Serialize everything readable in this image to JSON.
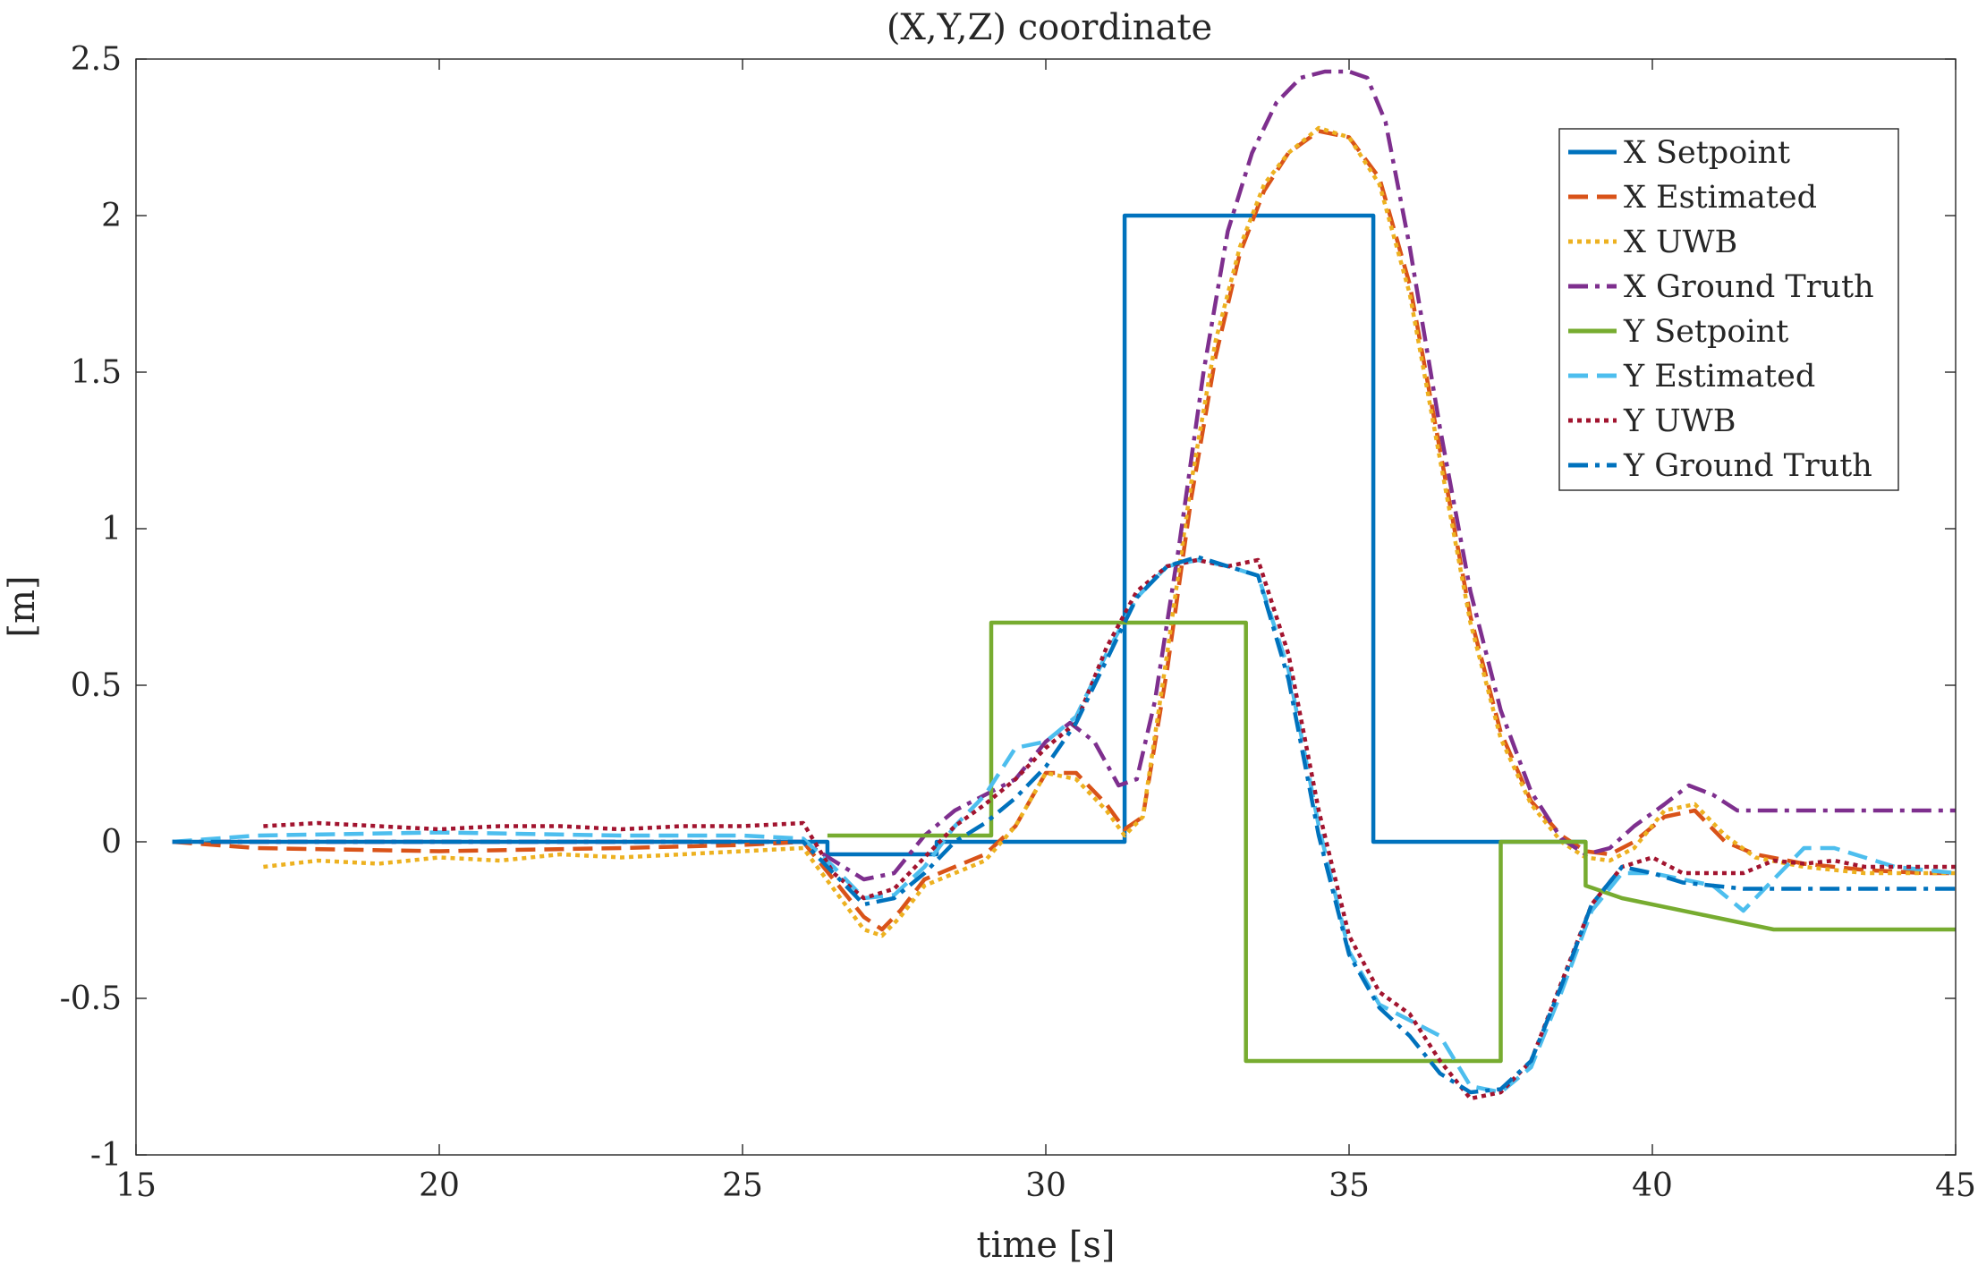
{
  "chart_data": {
    "type": "line",
    "title": "(X,Y,Z) coordinate",
    "xlabel": "time [s]",
    "ylabel": "[m]",
    "xlim": [
      15,
      45
    ],
    "ylim": [
      -1,
      2.5
    ],
    "xticks": [
      15,
      20,
      25,
      30,
      35,
      40,
      45
    ],
    "xtick_labels": [
      "15",
      "20",
      "25",
      "30",
      "35",
      "40",
      "45"
    ],
    "yticks": [
      -1,
      -0.5,
      0,
      0.5,
      1,
      1.5,
      2,
      2.5
    ],
    "ytick_labels": [
      "-1",
      "-0.5",
      "0",
      "0.5",
      "1",
      "1.5",
      "2",
      "2.5"
    ],
    "grid": false,
    "legend_position": "top-right",
    "series": [
      {
        "name": "X Setpoint",
        "color": "#0072BD",
        "style": "solid",
        "x": [
          15.6,
          26.4,
          26.4,
          28.2,
          28.2,
          31.3,
          31.3,
          35.4,
          35.4,
          38.9
        ],
        "y": [
          0,
          0,
          -0.04,
          -0.04,
          0,
          0,
          2.0,
          2.0,
          0,
          0
        ]
      },
      {
        "name": "X Estimated",
        "color": "#D95319",
        "style": "dashed",
        "x": [
          15.6,
          17,
          20,
          23,
          25,
          26,
          26.5,
          27,
          27.3,
          27.6,
          28,
          28.5,
          29,
          29.5,
          30,
          30.5,
          31,
          31.3,
          31.6,
          32,
          32.4,
          32.8,
          33.2,
          33.6,
          34,
          34.5,
          35,
          35.5,
          36,
          36.5,
          37,
          37.5,
          38,
          38.5,
          38.9,
          39.3,
          39.7,
          40.2,
          40.7,
          41.2,
          41.7,
          42.5,
          43.5,
          44.5,
          45
        ],
        "y": [
          0,
          -0.02,
          -0.03,
          -0.02,
          -0.01,
          0.0,
          -0.12,
          -0.24,
          -0.28,
          -0.22,
          -0.12,
          -0.08,
          -0.04,
          0.05,
          0.22,
          0.22,
          0.12,
          0.04,
          0.08,
          0.55,
          1.1,
          1.55,
          1.88,
          2.08,
          2.2,
          2.27,
          2.25,
          2.12,
          1.78,
          1.25,
          0.72,
          0.35,
          0.13,
          0.02,
          -0.03,
          -0.04,
          0.0,
          0.08,
          0.1,
          0.0,
          -0.04,
          -0.07,
          -0.09,
          -0.1,
          -0.1
        ]
      },
      {
        "name": "X UWB",
        "color": "#EDB120",
        "style": "dotted",
        "x": [
          17.1,
          18,
          19,
          20,
          21,
          22,
          23,
          24,
          25,
          26,
          26.5,
          27,
          27.3,
          27.6,
          28,
          28.5,
          29,
          29.5,
          30,
          30.5,
          31,
          31.3,
          31.6,
          32,
          32.4,
          32.8,
          33.2,
          33.6,
          34,
          34.5,
          35,
          35.5,
          36,
          36.5,
          37,
          37.5,
          38,
          38.5,
          38.9,
          39.3,
          39.7,
          40.2,
          40.7,
          41.2,
          41.7,
          42.5,
          43.5,
          44.5,
          45
        ],
        "y": [
          -0.08,
          -0.06,
          -0.07,
          -0.05,
          -0.06,
          -0.04,
          -0.05,
          -0.04,
          -0.03,
          -0.02,
          -0.15,
          -0.28,
          -0.3,
          -0.24,
          -0.14,
          -0.1,
          -0.06,
          0.05,
          0.22,
          0.2,
          0.1,
          0.02,
          0.08,
          0.6,
          1.15,
          1.6,
          1.9,
          2.1,
          2.2,
          2.28,
          2.25,
          2.1,
          1.75,
          1.22,
          0.7,
          0.33,
          0.12,
          0.0,
          -0.05,
          -0.06,
          -0.02,
          0.1,
          0.12,
          0.02,
          -0.05,
          -0.08,
          -0.1,
          -0.1,
          -0.1
        ]
      },
      {
        "name": "X Ground Truth",
        "color": "#7E2F8E",
        "style": "dashdot",
        "x": [
          15.6,
          17,
          20,
          23,
          25,
          26,
          26.5,
          27,
          27.5,
          28,
          28.5,
          29,
          29.5,
          30,
          30.4,
          30.8,
          31.2,
          31.5,
          31.8,
          32.2,
          32.6,
          33,
          33.4,
          33.8,
          34.2,
          34.6,
          35.0,
          35.3,
          35.6,
          36,
          36.5,
          37,
          37.5,
          38,
          38.5,
          38.9,
          39.3,
          39.7,
          40.2,
          40.6,
          41,
          41.4,
          42,
          43,
          44,
          45
        ],
        "y": [
          0,
          0,
          0,
          0,
          0,
          0.0,
          -0.06,
          -0.12,
          -0.1,
          0.02,
          0.1,
          0.15,
          0.2,
          0.32,
          0.38,
          0.32,
          0.18,
          0.2,
          0.45,
          0.95,
          1.5,
          1.95,
          2.2,
          2.36,
          2.44,
          2.46,
          2.46,
          2.44,
          2.3,
          1.9,
          1.32,
          0.8,
          0.42,
          0.16,
          0.01,
          -0.04,
          -0.02,
          0.05,
          0.12,
          0.18,
          0.15,
          0.1,
          0.1,
          0.1,
          0.1,
          0.1
        ]
      },
      {
        "name": "Y Setpoint",
        "color": "#77AC30",
        "style": "solid",
        "x": [
          26.4,
          29.1,
          29.1,
          33.3,
          33.3,
          37.5,
          37.5,
          38.9,
          38.9,
          39.5,
          41,
          42,
          45
        ],
        "y": [
          0.02,
          0.02,
          0.7,
          0.7,
          -0.7,
          -0.7,
          0,
          0,
          -0.14,
          -0.18,
          -0.24,
          -0.28,
          -0.28
        ]
      },
      {
        "name": "Y Estimated",
        "color": "#4DBEEE",
        "style": "dashed",
        "x": [
          15.6,
          17,
          20,
          23,
          25,
          26,
          26.5,
          27,
          27.5,
          28,
          28.5,
          29,
          29.5,
          30,
          30.5,
          31,
          31.5,
          32,
          32.5,
          33,
          33.5,
          34,
          34.5,
          35,
          35.5,
          36,
          36.5,
          37,
          37.5,
          38,
          38.5,
          39,
          39.5,
          40,
          40.5,
          41,
          41.5,
          42,
          42.5,
          43,
          43.5,
          44,
          45
        ],
        "y": [
          0,
          0.02,
          0.03,
          0.02,
          0.02,
          0.01,
          -0.08,
          -0.18,
          -0.17,
          -0.08,
          0.05,
          0.15,
          0.3,
          0.32,
          0.4,
          0.6,
          0.78,
          0.88,
          0.9,
          0.88,
          0.85,
          0.55,
          0.05,
          -0.35,
          -0.52,
          -0.57,
          -0.62,
          -0.78,
          -0.8,
          -0.72,
          -0.48,
          -0.22,
          -0.1,
          -0.1,
          -0.12,
          -0.14,
          -0.22,
          -0.12,
          -0.02,
          -0.02,
          -0.05,
          -0.08,
          -0.1
        ]
      },
      {
        "name": "Y UWB",
        "color": "#A2142F",
        "style": "dotted",
        "x": [
          17.1,
          18,
          19,
          20,
          21,
          22,
          23,
          24,
          25,
          26,
          26.5,
          27,
          27.5,
          28,
          28.5,
          29,
          29.5,
          30,
          30.5,
          31,
          31.5,
          32,
          32.5,
          33,
          33.5,
          34,
          34.5,
          35,
          35.5,
          36,
          36.5,
          37,
          37.5,
          38,
          38.5,
          39,
          39.5,
          40,
          40.5,
          41,
          41.5,
          42,
          42.5,
          43,
          43.5,
          44,
          45
        ],
        "y": [
          0.05,
          0.06,
          0.05,
          0.04,
          0.05,
          0.05,
          0.04,
          0.05,
          0.05,
          0.06,
          -0.1,
          -0.18,
          -0.15,
          -0.05,
          0.05,
          0.12,
          0.2,
          0.3,
          0.38,
          0.62,
          0.8,
          0.88,
          0.9,
          0.88,
          0.9,
          0.6,
          0.1,
          -0.3,
          -0.48,
          -0.55,
          -0.7,
          -0.82,
          -0.8,
          -0.7,
          -0.45,
          -0.2,
          -0.08,
          -0.05,
          -0.1,
          -0.1,
          -0.1,
          -0.06,
          -0.07,
          -0.06,
          -0.08,
          -0.08,
          -0.08
        ]
      },
      {
        "name": "Y Ground Truth",
        "color": "#0072BD",
        "style": "dashdot",
        "x": [
          15.6,
          17,
          20,
          23,
          25,
          26,
          26.5,
          27,
          27.5,
          28,
          28.5,
          29,
          29.5,
          30,
          30.5,
          31,
          31.5,
          32,
          32.5,
          33,
          33.5,
          34,
          34.5,
          35,
          35.5,
          36,
          36.5,
          37,
          37.5,
          38,
          38.5,
          39,
          39.5,
          40,
          40.5,
          41,
          41.5,
          42,
          43,
          44,
          45
        ],
        "y": [
          0,
          0,
          0,
          0,
          0,
          0,
          -0.1,
          -0.2,
          -0.18,
          -0.1,
          0.0,
          0.06,
          0.14,
          0.24,
          0.38,
          0.58,
          0.78,
          0.88,
          0.91,
          0.88,
          0.85,
          0.52,
          0.02,
          -0.36,
          -0.53,
          -0.62,
          -0.74,
          -0.8,
          -0.79,
          -0.7,
          -0.46,
          -0.2,
          -0.08,
          -0.1,
          -0.13,
          -0.14,
          -0.15,
          -0.15,
          -0.15,
          -0.15,
          -0.15
        ]
      }
    ]
  }
}
